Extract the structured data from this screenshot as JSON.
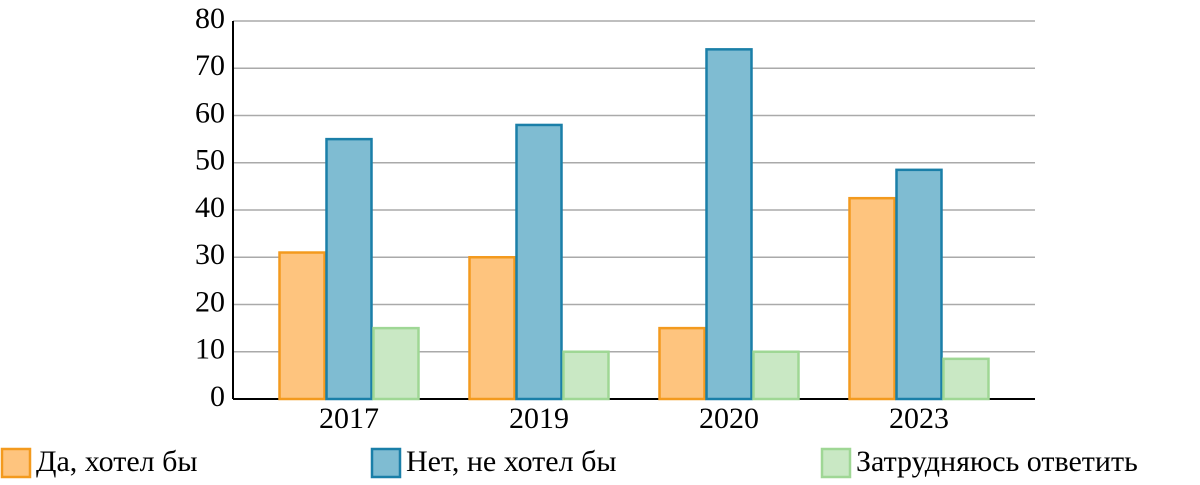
{
  "chart_data": {
    "type": "bar",
    "categories": [
      "2017",
      "2019",
      "2020",
      "2023"
    ],
    "series": [
      {
        "name": "Да, хотел бы",
        "color": "#fec47e",
        "stroke": "#f39a1e",
        "values": [
          31,
          30,
          15,
          42.5
        ]
      },
      {
        "name": "Нет, не хотел бы",
        "color": "#7fbcd2",
        "stroke": "#1a7fa8",
        "values": [
          55,
          58,
          74,
          48.5
        ]
      },
      {
        "name": "Затрудняюсь ответить",
        "color": "#c9e8c4",
        "stroke": "#9fd795",
        "values": [
          15,
          10,
          10,
          8.5
        ]
      }
    ],
    "ylim": [
      0,
      80
    ],
    "yticks": [
      0,
      10,
      20,
      30,
      40,
      50,
      60,
      70,
      80
    ],
    "grid": true
  }
}
